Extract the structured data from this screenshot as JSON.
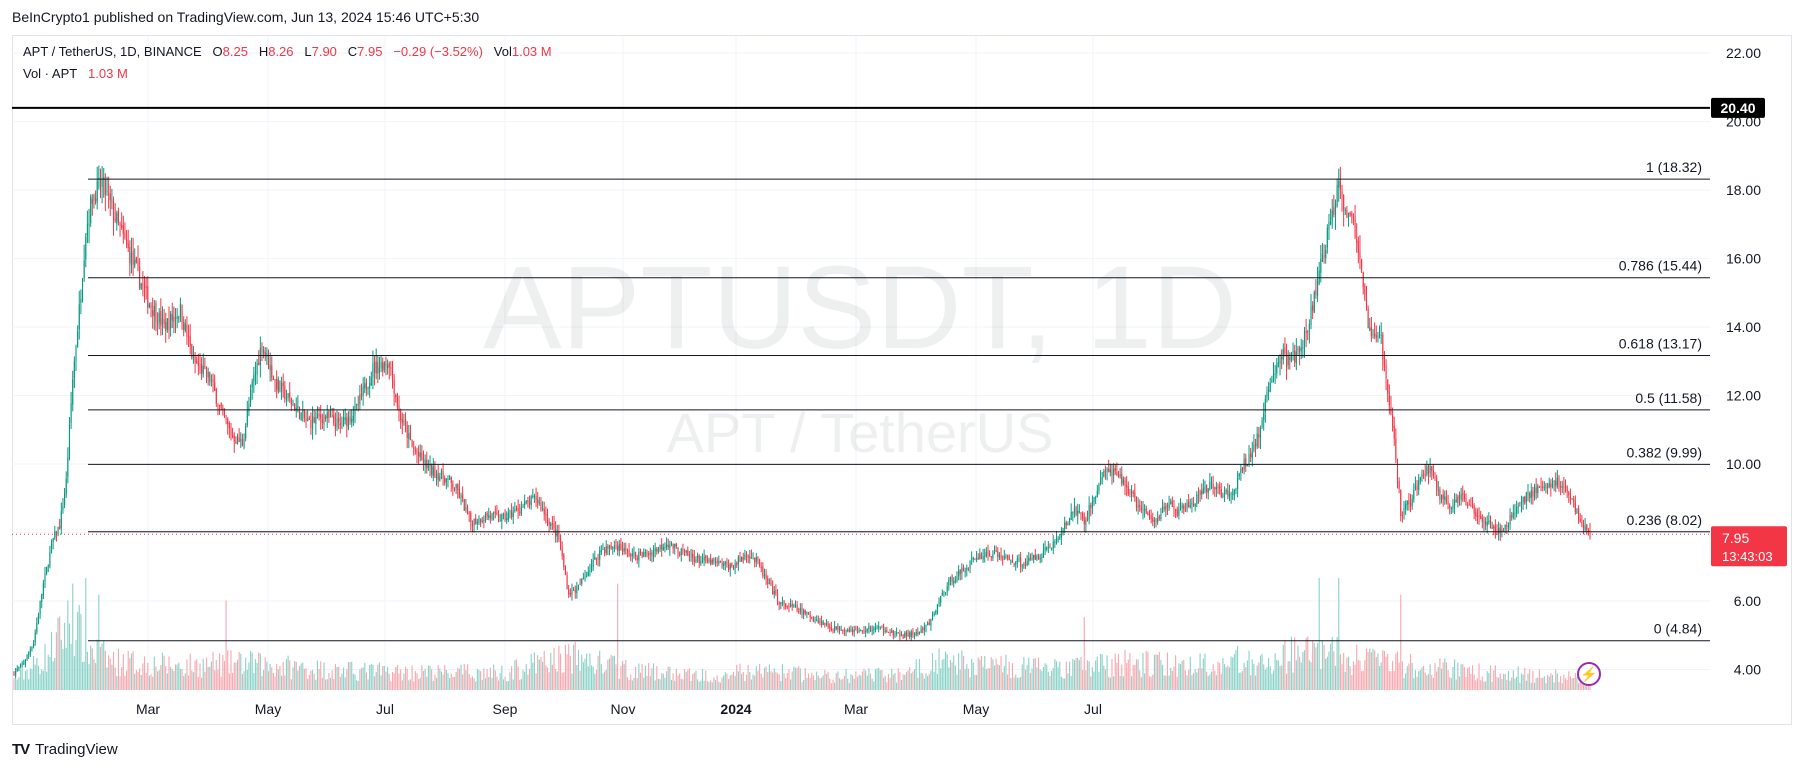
{
  "publisher": "BeInCrypto1 published on TradingView.com, Jun 13, 2024 15:46 UTC+5:30",
  "legend": {
    "symbol": "APT / TetherUS, 1D, BINANCE",
    "o_label": "O",
    "o": "8.25",
    "h_label": "H",
    "h": "8.26",
    "l_label": "L",
    "l": "7.90",
    "c_label": "C",
    "c": "7.95",
    "change": "−0.29 (−3.52%)",
    "vol_label": "Vol",
    "vol": "1.03 M",
    "vol_line_label": "Vol · APT",
    "vol_line_value": "1.03 M"
  },
  "watermark": {
    "main": "APTUSDT, 1D",
    "sub": "APT / TetherUS"
  },
  "brand": {
    "name": "TradingView",
    "logo": "TV"
  },
  "colors": {
    "up": "#089981",
    "down": "#f23645",
    "up_vol": "#8cd3c8",
    "down_vol": "#f7a9b0",
    "accent": "#9c27b0"
  },
  "chart_data": {
    "type": "candlestick",
    "symbol": "APT / TetherUS",
    "timeframe": "1D",
    "exchange": "BINANCE",
    "y_axis": {
      "min": 3.4,
      "max": 22.5,
      "ticks": [
        "4.00",
        "6.00",
        "8.00",
        "10.00",
        "12.00",
        "14.00",
        "16.00",
        "18.00",
        "20.00",
        "22.00"
      ]
    },
    "x_axis": {
      "ticks": [
        "Mar",
        "May",
        "Jul",
        "Sep",
        "Nov",
        "2024",
        "Mar",
        "May",
        "Jul"
      ]
    },
    "horizontal_line": {
      "value": 20.4,
      "label": "20.40"
    },
    "fib_levels": [
      {
        "label": "1 (18.32)",
        "value": 18.32
      },
      {
        "label": "0.786 (15.44)",
        "value": 15.44
      },
      {
        "label": "0.618 (13.17)",
        "value": 13.17
      },
      {
        "label": "0.5 (11.58)",
        "value": 11.58
      },
      {
        "label": "0.382 (9.99)",
        "value": 9.99
      },
      {
        "label": "0.236 (8.02)",
        "value": 8.02
      },
      {
        "label": "0 (4.84)",
        "value": 4.84
      }
    ],
    "last_price": {
      "value": 7.95,
      "label": "7.95",
      "countdown": "13:43:03"
    },
    "price_path": [
      [
        0,
        3.9
      ],
      [
        6,
        4.2
      ],
      [
        12,
        4.8
      ],
      [
        18,
        6.5
      ],
      [
        24,
        7.8
      ],
      [
        28,
        8.2
      ],
      [
        32,
        9.5
      ],
      [
        36,
        12.5
      ],
      [
        40,
        14.5
      ],
      [
        44,
        16.8
      ],
      [
        48,
        17.8
      ],
      [
        54,
        18.2
      ],
      [
        62,
        17.2
      ],
      [
        72,
        16.0
      ],
      [
        82,
        14.8
      ],
      [
        92,
        14.0
      ],
      [
        102,
        14.5
      ],
      [
        110,
        13.0
      ],
      [
        120,
        12.5
      ],
      [
        128,
        11.4
      ],
      [
        134,
        10.8
      ],
      [
        140,
        10.6
      ],
      [
        146,
        12.3
      ],
      [
        152,
        13.5
      ],
      [
        160,
        12.4
      ],
      [
        170,
        11.8
      ],
      [
        180,
        11.2
      ],
      [
        190,
        11.4
      ],
      [
        200,
        11.1
      ],
      [
        210,
        11.6
      ],
      [
        220,
        12.8
      ],
      [
        230,
        13.0
      ],
      [
        236,
        11.5
      ],
      [
        244,
        10.5
      ],
      [
        250,
        10.1
      ],
      [
        256,
        9.8
      ],
      [
        264,
        9.6
      ],
      [
        272,
        9.2
      ],
      [
        280,
        8.3
      ],
      [
        290,
        8.5
      ],
      [
        300,
        8.4
      ],
      [
        310,
        8.7
      ],
      [
        320,
        9.0
      ],
      [
        326,
        8.5
      ],
      [
        334,
        7.8
      ],
      [
        340,
        6.2
      ],
      [
        346,
        6.4
      ],
      [
        352,
        6.9
      ],
      [
        360,
        7.5
      ],
      [
        370,
        7.6
      ],
      [
        380,
        7.3
      ],
      [
        390,
        7.4
      ],
      [
        400,
        7.7
      ],
      [
        410,
        7.4
      ],
      [
        420,
        7.2
      ],
      [
        430,
        7.1
      ],
      [
        440,
        7.0
      ],
      [
        450,
        7.4
      ],
      [
        456,
        7.1
      ],
      [
        462,
        6.5
      ],
      [
        470,
        5.9
      ],
      [
        478,
        5.8
      ],
      [
        486,
        5.6
      ],
      [
        494,
        5.4
      ],
      [
        502,
        5.2
      ],
      [
        510,
        5.2
      ],
      [
        518,
        5.1
      ],
      [
        526,
        5.2
      ],
      [
        534,
        5.2
      ],
      [
        540,
        5.0
      ],
      [
        548,
        5.0
      ],
      [
        556,
        5.1
      ],
      [
        562,
        5.4
      ],
      [
        568,
        6.1
      ],
      [
        574,
        6.6
      ],
      [
        582,
        6.9
      ],
      [
        590,
        7.3
      ],
      [
        600,
        7.4
      ],
      [
        610,
        7.2
      ],
      [
        620,
        7.1
      ],
      [
        630,
        7.4
      ],
      [
        640,
        7.8
      ],
      [
        650,
        8.7
      ],
      [
        656,
        8.3
      ],
      [
        662,
        9.0
      ],
      [
        668,
        9.8
      ],
      [
        674,
        9.7
      ],
      [
        680,
        9.5
      ],
      [
        686,
        9.0
      ],
      [
        694,
        8.5
      ],
      [
        700,
        8.3
      ],
      [
        706,
        8.9
      ],
      [
        712,
        8.6
      ],
      [
        718,
        8.7
      ],
      [
        726,
        9.0
      ],
      [
        734,
        9.4
      ],
      [
        740,
        9.2
      ],
      [
        746,
        9.0
      ],
      [
        752,
        9.8
      ],
      [
        758,
        10.3
      ],
      [
        764,
        11.0
      ],
      [
        770,
        12.4
      ],
      [
        776,
        13.2
      ],
      [
        782,
        13.0
      ],
      [
        790,
        13.4
      ],
      [
        796,
        14.6
      ],
      [
        802,
        16.0
      ],
      [
        808,
        17.3
      ],
      [
        812,
        18.4
      ],
      [
        816,
        17.5
      ],
      [
        820,
        17.2
      ],
      [
        824,
        16.3
      ],
      [
        828,
        14.6
      ],
      [
        832,
        13.6
      ],
      [
        838,
        13.7
      ],
      [
        842,
        12.0
      ],
      [
        846,
        10.7
      ],
      [
        850,
        8.6
      ],
      [
        856,
        8.9
      ],
      [
        862,
        9.6
      ],
      [
        868,
        9.9
      ],
      [
        874,
        9.1
      ],
      [
        880,
        8.8
      ],
      [
        888,
        9.0
      ],
      [
        896,
        8.6
      ],
      [
        904,
        8.3
      ],
      [
        910,
        8.0
      ],
      [
        916,
        8.3
      ],
      [
        922,
        8.8
      ],
      [
        930,
        9.2
      ],
      [
        938,
        9.3
      ],
      [
        946,
        9.5
      ],
      [
        952,
        9.2
      ],
      [
        958,
        8.6
      ],
      [
        962,
        8.2
      ],
      [
        966,
        7.95
      ]
    ],
    "volume_path": [
      [
        0,
        0.1
      ],
      [
        20,
        0.35
      ],
      [
        36,
        0.75
      ],
      [
        44,
        0.45
      ],
      [
        60,
        0.3
      ],
      [
        100,
        0.25
      ],
      [
        140,
        0.28
      ],
      [
        200,
        0.2
      ],
      [
        260,
        0.18
      ],
      [
        300,
        0.18
      ],
      [
        340,
        0.35
      ],
      [
        380,
        0.2
      ],
      [
        420,
        0.15
      ],
      [
        460,
        0.2
      ],
      [
        500,
        0.14
      ],
      [
        540,
        0.16
      ],
      [
        570,
        0.3
      ],
      [
        600,
        0.25
      ],
      [
        640,
        0.22
      ],
      [
        680,
        0.28
      ],
      [
        720,
        0.25
      ],
      [
        760,
        0.32
      ],
      [
        800,
        0.4
      ],
      [
        830,
        0.3
      ],
      [
        860,
        0.25
      ],
      [
        900,
        0.18
      ],
      [
        940,
        0.15
      ],
      [
        966,
        0.12
      ]
    ],
    "volume_spikes": [
      [
        44,
        1.0
      ],
      [
        52,
        0.85
      ],
      [
        370,
        0.95
      ],
      [
        800,
        1.0
      ],
      [
        812,
        1.0
      ],
      [
        850,
        0.85
      ],
      [
        36,
        0.95
      ],
      [
        130,
        0.8
      ],
      [
        656,
        0.65
      ]
    ]
  }
}
